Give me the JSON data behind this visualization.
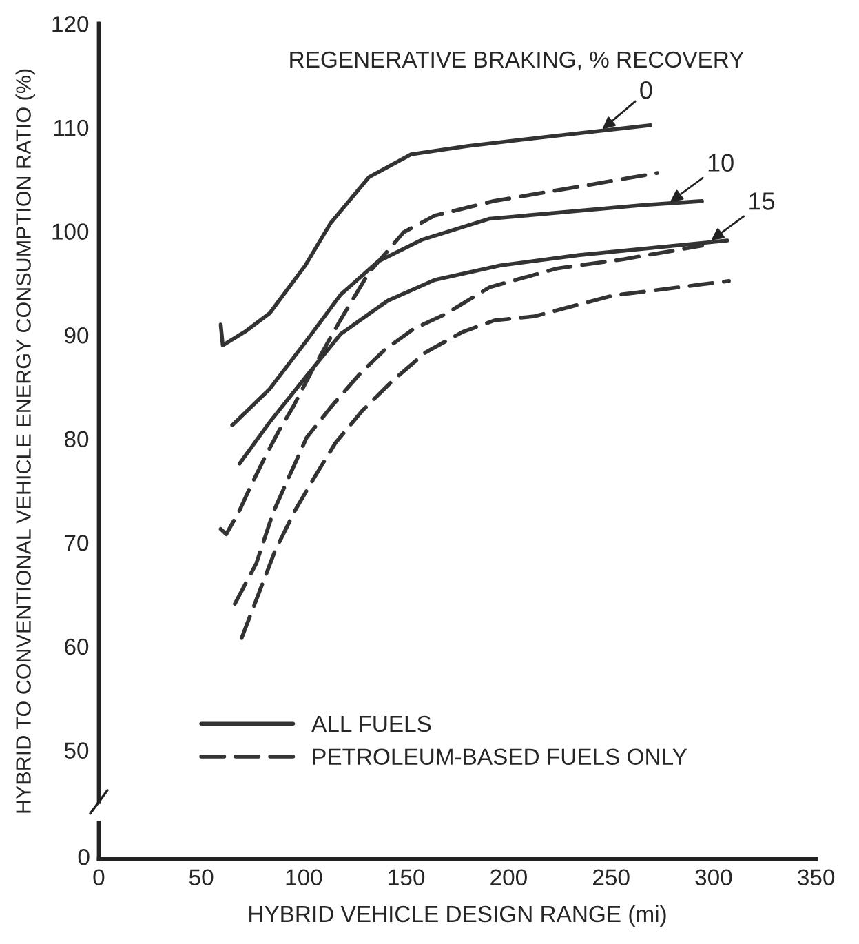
{
  "chart_data": {
    "type": "line",
    "xlabel": "HYBRID VEHICLE DESIGN RANGE (mi)",
    "ylabel": "HYBRID TO CONVENTIONAL VEHICLE ENERGY CONSUMPTION RATIO (%)",
    "xlim": [
      0,
      350
    ],
    "xticks": [
      0,
      50,
      100,
      150,
      200,
      250,
      300,
      350
    ],
    "ylim": [
      45,
      120
    ],
    "yticks": [
      50,
      60,
      70,
      80,
      90,
      100,
      110,
      120
    ],
    "grid": false,
    "legend": "bottom left",
    "marker": "none",
    "annotations": [
      "REGENERATIVE BRAKING, % RECOVERY",
      "0",
      {
        "text": "0",
        "x": 245,
        "y": 109.7
      },
      {
        "text": "10",
        "x": 278,
        "y": 102.7
      },
      {
        "text": "15",
        "x": 298,
        "y": 99.0
      }
    ],
    "series": [
      {
        "name": "ALL FUELS",
        "color": "#333333",
        "line_style": "solid",
        "x": [
          59.5,
          60.5,
          72.0,
          83.4,
          100.8,
          113.2,
          131.8,
          152.4,
          179.9,
          223.4,
          269.2
        ],
        "values": [
          91.0,
          89.0,
          90.4,
          92.1,
          96.7,
          100.8,
          105.2,
          107.4,
          108.2,
          109.2,
          110.2
        ]
      },
      {
        "name": "PETROLEUM-BASED FUELS ONLY",
        "color": "#333333",
        "line_style": "dashed",
        "x": [
          59.5,
          62.2,
          68.7,
          74.3,
          81.8,
          88.3,
          94.9,
          104.7,
          117.8,
          131.8,
          148.8,
          163.9,
          192.7,
          234.5,
          272.5
        ],
        "values": [
          71.3,
          70.8,
          73.1,
          75.5,
          78.5,
          80.9,
          83.1,
          86.8,
          91.4,
          96.0,
          99.9,
          101.5,
          102.9,
          104.3,
          105.6
        ]
      },
      {
        "color": "#333333",
        "line_style": "solid",
        "x": [
          65.1,
          83.4,
          100.8,
          118.1,
          136.4,
          158.0,
          190.7,
          265.0,
          294.4
        ],
        "values": [
          81.3,
          84.8,
          89.3,
          93.9,
          97.1,
          99.2,
          101.2,
          102.5,
          102.9
        ]
      },
      {
        "color": "#333333",
        "line_style": "dashed",
        "x": [
          66.4,
          76.9,
          85.1,
          93.9,
          101.4,
          113.5,
          127.6,
          139.7,
          153.7,
          169.1,
          190.7,
          223.4,
          256.1,
          294.4
        ],
        "values": [
          64.1,
          68.0,
          72.9,
          76.8,
          80.1,
          83.1,
          86.3,
          88.6,
          90.6,
          92.0,
          94.6,
          96.4,
          97.3,
          98.6
        ]
      },
      {
        "color": "#333333",
        "line_style": "solid",
        "x": [
          68.7,
          83.4,
          100.8,
          118.1,
          141.0,
          163.9,
          195.9,
          234.5,
          306.8
        ],
        "values": [
          77.6,
          81.6,
          85.9,
          90.1,
          93.3,
          95.3,
          96.7,
          97.7,
          99.1
        ]
      },
      {
        "color": "#333333",
        "line_style": "dashed",
        "x": [
          69.7,
          80.8,
          86.0,
          95.8,
          105.3,
          115.5,
          128.6,
          142.9,
          159.3,
          177.6,
          193.0,
          212.6,
          250.9,
          307.5
        ],
        "values": [
          60.8,
          66.5,
          69.2,
          73.1,
          76.3,
          79.6,
          82.7,
          85.5,
          88.3,
          90.3,
          91.4,
          91.8,
          93.8,
          95.2
        ]
      }
    ]
  }
}
